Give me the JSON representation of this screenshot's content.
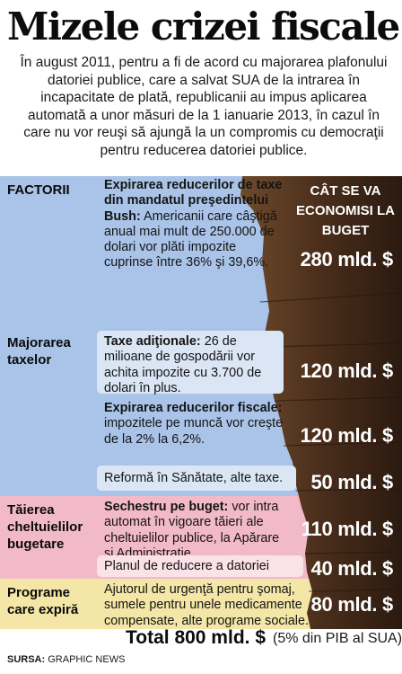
{
  "title": "Mizele crizei fiscale",
  "intro": "În august 2011, pentru a fi de acord cu majorarea plafonului datoriei publice, care a salvat SUA de la intrarea în incapacitate de plată, republicanii au impus aplicarea automată a unor măsuri de la 1 ianuarie 2013, în cazul în care nu vor reuşi să ajungă la un compromis cu democraţii pentru reducerea datoriei publice.",
  "header": {
    "factors": "FACTORII",
    "savings": "CÂT SE VA ECONOMISI LA BUGET"
  },
  "categories": {
    "taxes": "Majorarea taxelor",
    "cuts": "Tăierea cheltuielilor bugetare",
    "programs": "Programe care expiră"
  },
  "items": [
    {
      "bold": "Expirarea reducerilor de taxe din mandatul preşedintelui Bush:",
      "text": " Americanii care câştigă anual mai mult de 250.000 de dolari vor plăti impozite cuprinse între 36% şi 39,6%.",
      "amount": "280 mld. $"
    },
    {
      "bold": "Taxe adiţionale:",
      "text": " 26 de milioane de gospodării vor achita impozite cu 3.700 de dolari în plus.",
      "amount": "120 mld. $"
    },
    {
      "bold": "Expirarea reducerilor fiscale:",
      "text": " impozitele pe muncă vor creşte de la 2% la 6,2%.",
      "amount": "120 mld. $"
    },
    {
      "bold": "",
      "text": "Reformă în Sănătate, alte taxe.",
      "amount": "50 mld. $"
    },
    {
      "bold": "Sechestru pe buget:",
      "text": " vor intra automat în vigoare tăieri ale cheltuielilor publice, la Apărare şi Administraţie",
      "amount": "110 mld. $"
    },
    {
      "bold": "",
      "text": "Planul de reducere a datoriei",
      "amount": "40 mld. $"
    },
    {
      "bold": "",
      "text": "Ajutorul de urgenţă pentru şomaj, sumele pentru unele medicamente compensate, alte programe sociale.",
      "amount": "80 mld. $"
    }
  ],
  "total": {
    "label": "Total 800 mld. $",
    "note": "(5% din PIB al SUA)"
  },
  "source": {
    "label": "SURSA:",
    "value": "GRAPHIC NEWS"
  },
  "colors": {
    "blue_panel": "#a9c4e8",
    "light_blue_box": "#dbe6f5",
    "pink_panel": "#f2b9c9",
    "light_pink_box": "#fbe1e8",
    "yellow_panel": "#f3e6a6",
    "light_yellow_box": "#fbf4d4",
    "money_dark": "#3a2416",
    "money_mid": "#6a4226"
  }
}
